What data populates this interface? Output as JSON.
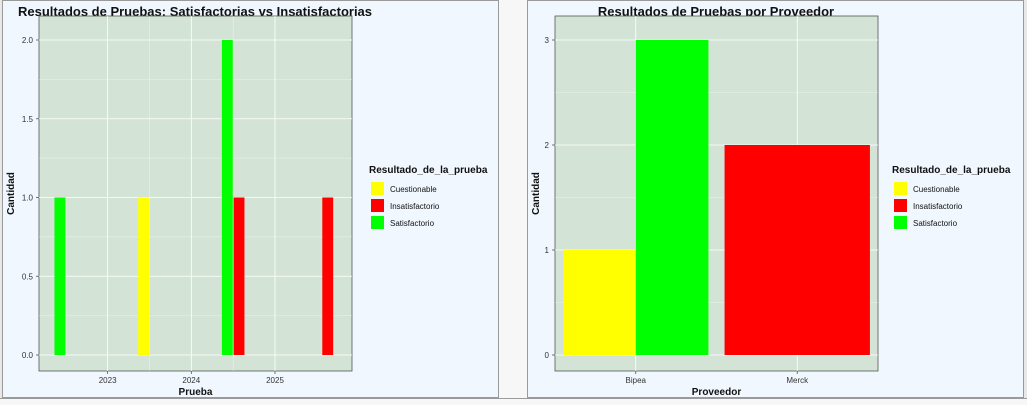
{
  "chart_data": [
    {
      "type": "bar",
      "title": "Resultados de Pruebas: Satisfactorias vs Insatisfactorias",
      "xlabel": "Prueba",
      "ylabel": "Cantidad",
      "ylim": [
        0,
        2.0
      ],
      "xlim": [
        2022.18,
        2025.92
      ],
      "yticks": [
        "0.0",
        "0.5",
        "1.0",
        "1.5",
        "2.0"
      ],
      "ytick_values": [
        0,
        0.5,
        1,
        1.5,
        2
      ],
      "xticks": [
        "2023",
        "2024",
        "2025"
      ],
      "xtick_values": [
        2023,
        2024,
        2025
      ],
      "bar_width": 0.13,
      "bars": [
        {
          "x": 2022.43,
          "value": 1,
          "series": "Satisfactorio"
        },
        {
          "x": 2023.43,
          "value": 1,
          "series": "Cuestionable"
        },
        {
          "x": 2024.43,
          "value": 2,
          "series": "Satisfactorio"
        },
        {
          "x": 2024.57,
          "value": 1,
          "series": "Insatisfactorio"
        },
        {
          "x": 2025.63,
          "value": 1,
          "series": "Insatisfactorio"
        }
      ],
      "legend": {
        "title": "Resultado_de_la_prueba",
        "position": "right",
        "entries": [
          {
            "name": "Cuestionable",
            "color": "#ffff00"
          },
          {
            "name": "Insatisfactorio",
            "color": "#ff0000"
          },
          {
            "name": "Satisfactorio",
            "color": "#00ff00"
          }
        ]
      },
      "grid": true
    },
    {
      "type": "bar",
      "title": "Resultados de Pruebas por Proveedor",
      "xlabel": "Proveedor",
      "ylabel": "Cantidad",
      "ylim": [
        0,
        3
      ],
      "yticks": [
        "0",
        "1",
        "2",
        "3"
      ],
      "ytick_values": [
        0,
        1,
        2,
        3
      ],
      "categories": [
        "Bipea",
        "Merck"
      ],
      "bars": [
        {
          "category": "Bipea",
          "offset": -0.225,
          "width": 0.45,
          "value": 1,
          "series": "Cuestionable"
        },
        {
          "category": "Bipea",
          "offset": 0.225,
          "width": 0.45,
          "value": 3,
          "series": "Satisfactorio"
        },
        {
          "category": "Merck",
          "offset": 0,
          "width": 0.9,
          "value": 2,
          "series": "Insatisfactorio"
        }
      ],
      "legend": {
        "title": "Resultado_de_la_prueba",
        "position": "right",
        "entries": [
          {
            "name": "Cuestionable",
            "color": "#ffff00"
          },
          {
            "name": "Insatisfactorio",
            "color": "#ff0000"
          },
          {
            "name": "Satisfactorio",
            "color": "#00ff00"
          }
        ]
      },
      "grid": true
    }
  ],
  "colors": {
    "Cuestionable": "#ffff00",
    "Insatisfactorio": "#ff0000",
    "Satisfactorio": "#00ff00",
    "plot_background": "#d3e4d6",
    "grid": "#ffffff"
  }
}
